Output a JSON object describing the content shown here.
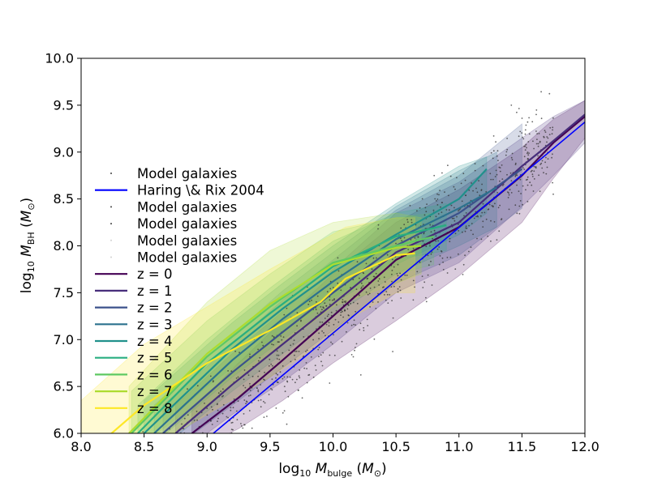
{
  "chart_data": {
    "type": "line",
    "xlabel": "log₁₀ M_bulge (M⊙)",
    "ylabel": "log₁₀ M_BH (M⊙)",
    "xlim": [
      8.0,
      12.0
    ],
    "ylim": [
      6.0,
      10.0
    ],
    "xticks": [
      "8.0",
      "8.5",
      "9.0",
      "9.5",
      "10.0",
      "10.5",
      "11.0",
      "11.5",
      "12.0"
    ],
    "yticks": [
      "6.0",
      "6.5",
      "7.0",
      "7.5",
      "8.0",
      "8.5",
      "9.0",
      "9.5",
      "10.0"
    ],
    "grid": false,
    "legend_position": "left",
    "legend": [
      {
        "label": "Model galaxies",
        "kind": "points",
        "color": "#404040"
      },
      {
        "label": "Haring \\& Rix 2004",
        "kind": "line",
        "color": "#0000ff"
      },
      {
        "label": "Model galaxies",
        "kind": "points",
        "color": "#404040"
      },
      {
        "label": "Model galaxies",
        "kind": "points",
        "color": "#404040"
      },
      {
        "label": "Model galaxies",
        "kind": "points",
        "color": "#d0d0d0"
      },
      {
        "label": "Model galaxies",
        "kind": "points",
        "color": "#d0d0d0"
      },
      {
        "label": "z = 0",
        "kind": "line",
        "color": "#440154"
      },
      {
        "label": "z = 1",
        "kind": "line",
        "color": "#472d7b"
      },
      {
        "label": "z = 2",
        "kind": "line",
        "color": "#3b528b"
      },
      {
        "label": "z = 3",
        "kind": "line",
        "color": "#2c728e"
      },
      {
        "label": "z = 4",
        "kind": "line",
        "color": "#21918c"
      },
      {
        "label": "z = 5",
        "kind": "line",
        "color": "#28ae80"
      },
      {
        "label": "z = 6",
        "kind": "line",
        "color": "#5ec962"
      },
      {
        "label": "z = 7",
        "kind": "line",
        "color": "#addc30"
      },
      {
        "label": "z = 8",
        "kind": "line",
        "color": "#fde725"
      }
    ],
    "reference_line": {
      "name": "Haring \\& Rix 2004",
      "color": "#0000ff",
      "x": [
        9.05,
        12.0
      ],
      "y": [
        6.0,
        9.32
      ]
    },
    "series": [
      {
        "name": "z = 0",
        "color": "#440154",
        "x": [
          8.88,
          9.25,
          9.6,
          10.0,
          10.5,
          11.0,
          11.5,
          11.75,
          12.0
        ],
        "y": [
          6.0,
          6.38,
          6.78,
          7.25,
          7.85,
          8.2,
          8.75,
          9.1,
          9.38
        ],
        "lo": [
          5.8,
          6.05,
          6.35,
          6.75,
          7.2,
          7.68,
          8.25,
          8.72,
          9.15
        ],
        "hi": [
          6.25,
          6.75,
          7.2,
          7.7,
          8.25,
          8.6,
          9.05,
          9.35,
          9.55
        ]
      },
      {
        "name": "z = 1",
        "color": "#472d7b",
        "x": [
          8.75,
          9.2,
          9.6,
          10.0,
          10.5,
          11.0,
          11.5,
          11.75,
          12.0
        ],
        "y": [
          6.0,
          6.52,
          6.95,
          7.38,
          7.93,
          8.25,
          8.85,
          9.12,
          9.4
        ],
        "lo": [
          5.75,
          6.2,
          6.55,
          6.95,
          7.5,
          7.82,
          8.42,
          8.75,
          9.1
        ],
        "hi": [
          6.3,
          6.85,
          7.3,
          7.75,
          8.35,
          8.68,
          9.15,
          9.38,
          9.55
        ]
      },
      {
        "name": "z = 2",
        "color": "#3b528b",
        "x": [
          8.65,
          9.2,
          9.6,
          10.0,
          10.5,
          11.0,
          11.5
        ],
        "y": [
          6.0,
          6.65,
          7.08,
          7.5,
          8.0,
          8.35,
          8.82
        ],
        "lo": [
          5.75,
          6.3,
          6.7,
          7.1,
          7.6,
          7.9,
          8.4
        ],
        "hi": [
          6.3,
          6.95,
          7.42,
          7.85,
          8.38,
          8.75,
          9.3
        ]
      },
      {
        "name": "z = 3",
        "color": "#2c728e",
        "x": [
          8.58,
          9.2,
          9.6,
          10.0,
          10.5,
          11.0,
          11.3
        ],
        "y": [
          6.0,
          6.78,
          7.22,
          7.62,
          8.07,
          8.4,
          8.62
        ],
        "lo": [
          5.78,
          6.45,
          6.85,
          7.25,
          7.7,
          8.0,
          8.2
        ],
        "hi": [
          6.3,
          7.05,
          7.52,
          7.93,
          8.42,
          8.8,
          9.0
        ]
      },
      {
        "name": "z = 4",
        "color": "#21918c",
        "x": [
          8.5,
          9.2,
          9.6,
          10.0,
          10.5,
          11.0,
          11.22
        ],
        "y": [
          6.0,
          6.9,
          7.33,
          7.72,
          8.12,
          8.5,
          8.82
        ],
        "lo": [
          5.8,
          6.6,
          7.0,
          7.38,
          7.8,
          8.12,
          8.35
        ],
        "hi": [
          6.35,
          7.18,
          7.6,
          8.0,
          8.45,
          8.85,
          8.95
        ]
      },
      {
        "name": "z = 5",
        "color": "#28ae80",
        "x": [
          8.45,
          9.0,
          9.5,
          10.0,
          10.5,
          10.9
        ],
        "y": [
          6.0,
          6.75,
          7.28,
          7.78,
          8.1,
          8.22
        ],
        "lo": [
          5.85,
          6.5,
          7.0,
          7.45,
          7.85,
          7.95
        ],
        "hi": [
          6.3,
          7.0,
          7.55,
          8.05,
          8.35,
          8.45
        ]
      },
      {
        "name": "z = 6",
        "color": "#5ec962",
        "x": [
          8.4,
          9.0,
          9.5,
          10.0,
          10.5,
          10.8
        ],
        "y": [
          6.0,
          6.82,
          7.35,
          7.82,
          8.0,
          8.1
        ],
        "lo": [
          5.8,
          6.4,
          6.95,
          7.45,
          7.7,
          7.8
        ],
        "hi": [
          6.45,
          7.2,
          7.7,
          8.15,
          8.3,
          8.35
        ]
      },
      {
        "name": "z = 7",
        "color": "#addc30",
        "x": [
          8.38,
          9.0,
          9.5,
          10.0,
          10.5,
          10.7
        ],
        "y": [
          6.0,
          6.85,
          7.38,
          7.8,
          7.98,
          8.0
        ],
        "lo": [
          5.6,
          6.3,
          6.85,
          7.35,
          7.6,
          7.7
        ],
        "hi": [
          6.5,
          7.4,
          7.95,
          8.25,
          8.35,
          8.3
        ]
      },
      {
        "name": "z = 8",
        "color": "#fde725",
        "x": [
          8.0,
          8.5,
          9.0,
          9.5,
          9.9,
          10.1,
          10.5,
          10.65
        ],
        "y": [
          5.72,
          6.3,
          6.75,
          7.1,
          7.4,
          7.65,
          7.9,
          7.92
        ],
        "lo": [
          5.25,
          5.8,
          6.2,
          6.6,
          6.95,
          7.2,
          7.5,
          7.5
        ],
        "hi": [
          6.35,
          6.95,
          7.35,
          7.75,
          8.05,
          8.2,
          8.3,
          8.3
        ]
      }
    ],
    "scatter": {
      "name": "Model galaxies",
      "color": "#333333",
      "x_range": [
        8.0,
        11.75
      ],
      "center_slope": 1.12,
      "center_intercept": -4.0,
      "spread": 0.38
    }
  }
}
